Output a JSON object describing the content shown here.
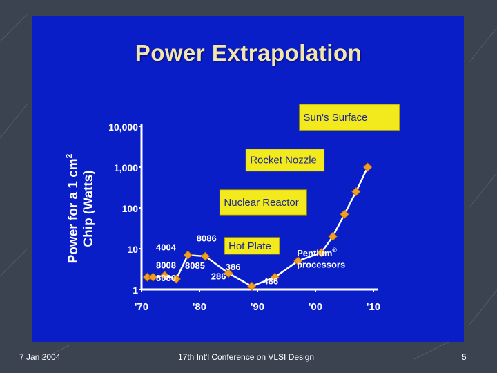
{
  "slide": {
    "title": "Power Extrapolation",
    "footer": {
      "date": "7 Jan 2004",
      "conference": "17th Int'l Conference on VLSI Design",
      "page": "5"
    }
  },
  "colors": {
    "slide_background": "#0a1ec8",
    "frame_background": "#3c4350",
    "data_series": "#f0a020",
    "label_box": "#f2ea1c",
    "text": "#ffffff"
  },
  "chart_data": {
    "type": "line",
    "title": "Power Extrapolation",
    "ylabel": "Power for a 1 cm",
    "ylabel_sup": "2",
    "ylabel_line2": "Chip (Watts)",
    "xlabel": "",
    "y_scale": "log",
    "ylim": [
      1,
      10000
    ],
    "xlim": [
      1970,
      2010
    ],
    "x_ticks": [
      {
        "value": 1970,
        "label": "'70"
      },
      {
        "value": 1980,
        "label": "'80"
      },
      {
        "value": 1990,
        "label": "'90"
      },
      {
        "value": 2000,
        "label": "'00"
      },
      {
        "value": 2010,
        "label": "'10"
      }
    ],
    "y_ticks": [
      {
        "value": 1,
        "label": "1"
      },
      {
        "value": 10,
        "label": "10"
      },
      {
        "value": 100,
        "label": "100"
      },
      {
        "value": 1000,
        "label": "1,000"
      },
      {
        "value": 10000,
        "label": "10,000"
      }
    ],
    "series": [
      {
        "x": [
          1971,
          1972,
          1974,
          1976,
          1978,
          1981,
          1985,
          1989,
          1993,
          1997,
          2001,
          2003,
          2005,
          2007,
          2009
        ],
        "y": [
          2.0,
          2.0,
          2.2,
          1.8,
          7.0,
          6.5,
          2.5,
          1.2,
          2.0,
          5.0,
          8.0,
          20,
          70,
          250,
          1000
        ]
      }
    ],
    "point_labels": [
      {
        "text": "4004",
        "x": 1972.5,
        "y": 9
      },
      {
        "text": "8008",
        "x": 1972.5,
        "y": 3.3
      },
      {
        "text": "8080",
        "x": 1972.5,
        "y": 1.6
      },
      {
        "text": "8086",
        "x": 1979.5,
        "y": 15
      },
      {
        "text": "8085",
        "x": 1977.5,
        "y": 3.2
      },
      {
        "text": "286",
        "x": 1982.0,
        "y": 1.75
      },
      {
        "text": "386",
        "x": 1984.5,
        "y": 3.0
      },
      {
        "text": "486",
        "x": 1991.0,
        "y": 1.35
      },
      {
        "text": "Pentium",
        "sup": "®",
        "x": 1996.8,
        "y": 6.5
      },
      {
        "text": "processors",
        "x": 1996.8,
        "y": 3.4
      }
    ],
    "annotations": [
      {
        "text": "Hot Plate",
        "x0": 1984.3,
        "x1": 1993.8,
        "y_bottom": 7.3,
        "y_top": 19
      },
      {
        "text": "Nuclear Reactor",
        "x0": 1983.5,
        "x1": 1998.5,
        "y_bottom": 67,
        "y_top": 280
      },
      {
        "text": "Rocket Nozzle",
        "x0": 1988.0,
        "x1": 2001.5,
        "y_bottom": 800,
        "y_top": 2800
      },
      {
        "text": "Sun's Surface",
        "x0": 1997.2,
        "x1": 2014.5,
        "y_bottom": 8000,
        "y_top": 35000
      }
    ]
  }
}
